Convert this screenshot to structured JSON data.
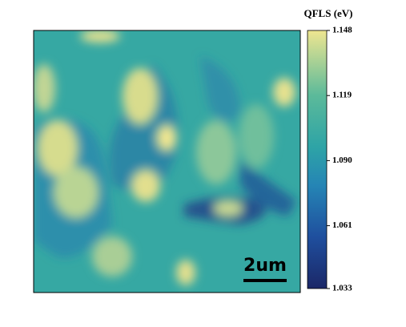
{
  "chart_data": {
    "type": "heatmap",
    "colorbar_title": "QFLS (eV)",
    "clim": [
      1.033,
      1.148
    ],
    "colorbar_ticks": [
      1.033,
      1.061,
      {
        "value": 1.09,
        "label": "1.090"
      },
      1.119,
      1.148
    ],
    "scale_bar": "2um"
  }
}
